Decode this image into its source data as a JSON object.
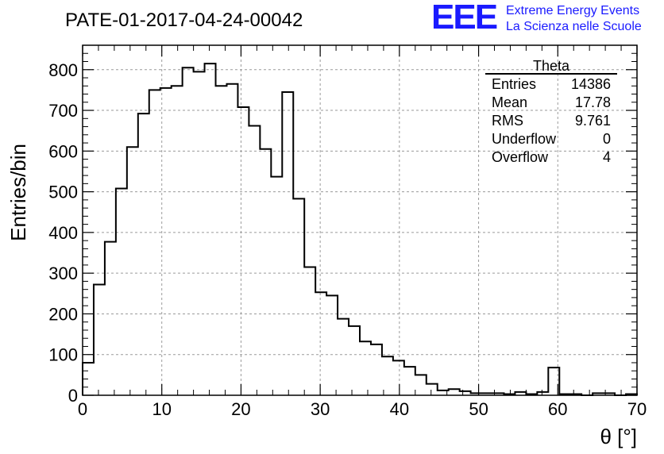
{
  "header": {
    "run_title": "PATE-01-2017-04-24-00042",
    "logo_text": "EEE",
    "logo_line1": "Extreme Energy Events",
    "logo_line2": "La Scienza nelle Scuole"
  },
  "stats": {
    "title": "Theta",
    "rows": [
      {
        "label": "Entries",
        "value": "14386"
      },
      {
        "label": "Mean",
        "value": "17.78"
      },
      {
        "label": "RMS",
        "value": "9.761"
      },
      {
        "label": "Underflow",
        "value": "0"
      },
      {
        "label": "Overflow",
        "value": "4"
      }
    ]
  },
  "colors": {
    "line": "#000000",
    "grid": "#9a9a9a",
    "logo": "#1a1aff"
  },
  "chart_data": {
    "type": "bar",
    "style": "step-histogram",
    "xlabel": "θ [°]",
    "ylabel": "Entries/bin",
    "xlim": [
      0,
      70
    ],
    "ylim": [
      0,
      860
    ],
    "grid": true,
    "bin_width": 1.4,
    "x_ticks": [
      0,
      10,
      20,
      30,
      40,
      50,
      60,
      70
    ],
    "y_ticks": [
      0,
      100,
      200,
      300,
      400,
      500,
      600,
      700,
      800
    ],
    "values": [
      80,
      272,
      377,
      508,
      610,
      692,
      750,
      755,
      760,
      805,
      795,
      815,
      760,
      765,
      708,
      662,
      605,
      537,
      745,
      483,
      315,
      253,
      245,
      188,
      170,
      132,
      125,
      95,
      85,
      70,
      50,
      28,
      12,
      15,
      10,
      5,
      5,
      5,
      3,
      8,
      3,
      8,
      68,
      3,
      3,
      0,
      5,
      5,
      0,
      3
    ]
  }
}
